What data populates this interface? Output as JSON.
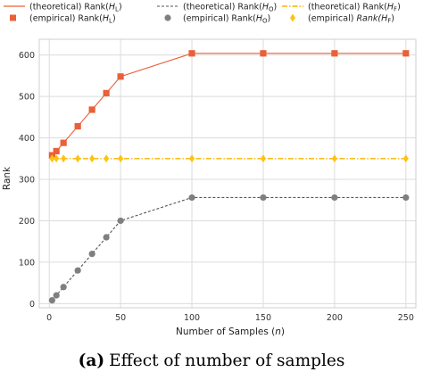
{
  "chart_data": {
    "type": "line",
    "title": "",
    "xlabel": "Number of Samples (n)",
    "ylabel": "Rank",
    "xlim": [
      -7,
      257
    ],
    "ylim": [
      -10,
      638
    ],
    "xticks": [
      0,
      50,
      100,
      150,
      200,
      250
    ],
    "yticks": [
      0,
      100,
      200,
      300,
      400,
      500,
      600
    ],
    "grid": true,
    "legend_position": "top",
    "series": [
      {
        "name": "(theoretical) Rank(H_L)",
        "style": "line-solid",
        "color": "#e9603a",
        "x": [
          2,
          5,
          10,
          20,
          30,
          40,
          50,
          100,
          150,
          200,
          250
        ],
        "y": [
          358,
          368,
          388,
          428,
          468,
          508,
          548,
          604,
          604,
          604,
          604
        ]
      },
      {
        "name": "(empirical) Rank(H_L)",
        "style": "square-markers",
        "color": "#e9603a",
        "x": [
          2,
          5,
          10,
          20,
          30,
          40,
          50,
          100,
          150,
          200,
          250
        ],
        "y": [
          358,
          368,
          388,
          428,
          468,
          508,
          548,
          604,
          604,
          604,
          604
        ]
      },
      {
        "name": "(theoretical) Rank(H_O)",
        "style": "line-dashed",
        "color": "#555555",
        "x": [
          2,
          5,
          10,
          20,
          30,
          40,
          50,
          100,
          150,
          200,
          250
        ],
        "y": [
          8,
          20,
          40,
          80,
          120,
          160,
          200,
          256,
          256,
          256,
          256
        ]
      },
      {
        "name": "(empirical) Rank(H_O)",
        "style": "circle-markers",
        "color": "#7f7f7f",
        "x": [
          2,
          5,
          10,
          20,
          30,
          40,
          50,
          100,
          150,
          200,
          250
        ],
        "y": [
          8,
          20,
          40,
          80,
          120,
          160,
          200,
          256,
          256,
          256,
          256
        ]
      },
      {
        "name": "(theoretical) Rank(H_F)",
        "style": "line-dashdot",
        "color": "#f5b400",
        "x": [
          2,
          5,
          10,
          20,
          30,
          40,
          50,
          100,
          150,
          200,
          250
        ],
        "y": [
          350,
          350,
          350,
          350,
          350,
          350,
          350,
          350,
          350,
          350,
          350
        ]
      },
      {
        "name": "(empirical) Rank(H_F)",
        "style": "diamond-markers",
        "color": "#ffc20e",
        "x": [
          2,
          5,
          10,
          20,
          30,
          40,
          50,
          100,
          150,
          200,
          250
        ],
        "y": [
          350,
          350,
          350,
          350,
          350,
          350,
          350,
          350,
          350,
          350,
          350
        ]
      }
    ]
  },
  "legend": [
    {
      "pre": "(theoretical) Rank(",
      "sym": "H",
      "sub": "L",
      "post": ")"
    },
    {
      "pre": "(theoretical) Rank(",
      "sym": "H",
      "sub": "O",
      "post": ")"
    },
    {
      "pre": "(theoretical) Rank(",
      "sym": "H",
      "sub": "F",
      "post": ")"
    },
    {
      "pre": "(empirical) Rank(",
      "sym": "H",
      "sub": "L",
      "post": ")"
    },
    {
      "pre": "(empirical) Rank(",
      "sym": "H",
      "sub": "O",
      "post": ")"
    },
    {
      "pre": "(empirical) ",
      "sym": "Rank(H",
      "sub": "F",
      "post": ")",
      "italic": true
    }
  ],
  "axes": {
    "xlabel_pre": "Number of Samples (",
    "xlabel_sym": "n",
    "xlabel_post": ")",
    "ylabel": "Rank"
  },
  "caption": {
    "tag": "(a)",
    "text": "Effect of number of samples"
  }
}
